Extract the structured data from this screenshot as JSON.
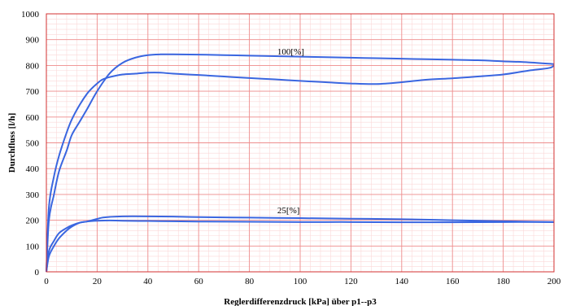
{
  "chart_data": {
    "type": "line",
    "title": "",
    "xlabel": "Reglerdifferenzdruck [kPa] über p1--p3",
    "ylabel": "Durchfluss [l/h]",
    "xlim": [
      0,
      200
    ],
    "ylim": [
      0,
      1000
    ],
    "xticks": [
      0,
      20,
      40,
      60,
      80,
      100,
      120,
      140,
      160,
      180,
      200
    ],
    "yticks": [
      0,
      100,
      200,
      300,
      400,
      500,
      600,
      700,
      800,
      900,
      1000
    ],
    "grid": true,
    "colors": {
      "series": "#3a66e0",
      "major_grid": "#ee8d8d",
      "minor_grid": "#fbd8d8",
      "frame": "#d33030"
    },
    "annotations": [
      {
        "text": "100[%]",
        "x": 91,
        "y": 855
      },
      {
        "text": "25[%]",
        "x": 91,
        "y": 240
      }
    ],
    "series": [
      {
        "x": [
          0,
          1,
          3,
          5,
          8,
          10,
          13,
          16,
          20,
          25,
          30,
          35,
          40,
          45,
          50,
          60,
          70,
          80,
          90,
          100,
          110,
          120,
          130,
          140,
          150,
          160,
          170,
          180,
          190,
          200
        ],
        "values": [
          0,
          200,
          300,
          390,
          470,
          530,
          580,
          630,
          700,
          770,
          810,
          830,
          840,
          843,
          843,
          842,
          840,
          838,
          836,
          834,
          832,
          830,
          828,
          826,
          824,
          822,
          820,
          816,
          812,
          805
        ]
      },
      {
        "x": [
          0,
          1,
          3,
          5,
          8,
          10,
          13,
          16,
          18,
          20,
          22,
          25,
          30,
          35,
          40,
          45,
          50,
          60,
          70,
          80,
          90,
          100,
          110,
          120,
          130,
          140,
          150,
          160,
          170,
          180,
          190,
          198,
          200
        ],
        "values": [
          0,
          250,
          370,
          450,
          540,
          590,
          645,
          690,
          712,
          730,
          745,
          755,
          765,
          768,
          772,
          772,
          768,
          763,
          757,
          751,
          746,
          740,
          735,
          730,
          728,
          735,
          745,
          750,
          757,
          765,
          780,
          790,
          800
        ]
      },
      {
        "x": [
          0,
          1,
          3,
          5,
          8,
          10,
          13,
          16,
          18,
          20,
          22,
          25,
          30,
          40,
          50,
          60,
          80,
          100,
          120,
          140,
          160,
          180,
          200
        ],
        "values": [
          0,
          60,
          100,
          130,
          160,
          175,
          190,
          195,
          200,
          205,
          210,
          213,
          215,
          215,
          214,
          212,
          210,
          208,
          206,
          204,
          200,
          196,
          193
        ]
      },
      {
        "x": [
          0,
          1,
          3,
          5,
          8,
          10,
          13,
          16,
          20,
          25,
          30,
          40,
          50,
          60,
          80,
          100,
          120,
          140,
          160,
          180,
          200
        ],
        "values": [
          0,
          80,
          120,
          150,
          170,
          180,
          190,
          195,
          198,
          199,
          198,
          197,
          196,
          195,
          194,
          193,
          193,
          192,
          192,
          193,
          193
        ]
      }
    ]
  }
}
